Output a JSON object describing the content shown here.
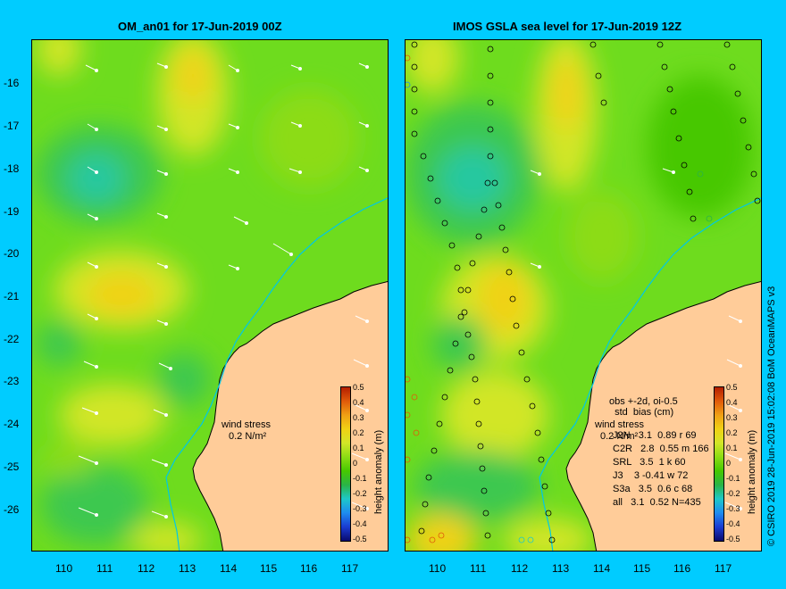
{
  "left_panel": {
    "title": "OM_an01 for 17-Jun-2019 00Z",
    "wind_label": "wind stress",
    "wind_scale": "0.2 N/m²"
  },
  "right_panel": {
    "title": "IMOS GSLA sea level  for 17-Jun-2019 12Z",
    "wind_label": "wind stress",
    "wind_scale": "0.2 N/m²",
    "obs_header": "obs +-2d, oi-0.5",
    "obs_subheader": "  std  bias (cm)",
    "obs_rows": [
      "J2N   3.1  0.89 r 69",
      "C2R   2.8  0.55 m 166",
      "SRL   3.5  1 k 60",
      "J3    3 -0.41 w 72",
      "S3a   3.5  0.6 c 68",
      "all   3.1  0.52 N=435"
    ]
  },
  "y_ticks": [
    "-16",
    "-17",
    "-18",
    "-19",
    "-20",
    "-21",
    "-22",
    "-23",
    "-24",
    "-25",
    "-26"
  ],
  "x_ticks": [
    "110",
    "111",
    "112",
    "113",
    "114",
    "115",
    "116",
    "117"
  ],
  "colorbar": {
    "ticks": [
      "0.5",
      "0.4",
      "0.3",
      "0.2",
      "0.1",
      "0",
      "-0.1",
      "-0.2",
      "-0.3",
      "-0.4",
      "-0.5"
    ],
    "label": "height anomaly (m)",
    "colors": [
      "#0a0a6e",
      "#1a3cd2",
      "#1e8cf0",
      "#1ec8c8",
      "#2ab446",
      "#46c800",
      "#8cdc14",
      "#d2e628",
      "#f0d214",
      "#f0a014",
      "#e05a0a",
      "#b41e00"
    ]
  },
  "credit": "© CSIRO 2019  28-Jun-2019 15:02:08 BoM OceanMAPS v3",
  "colors": {
    "background": "#00ccff",
    "land": "#ffcc99",
    "sea_base": "#6edc1e"
  }
}
